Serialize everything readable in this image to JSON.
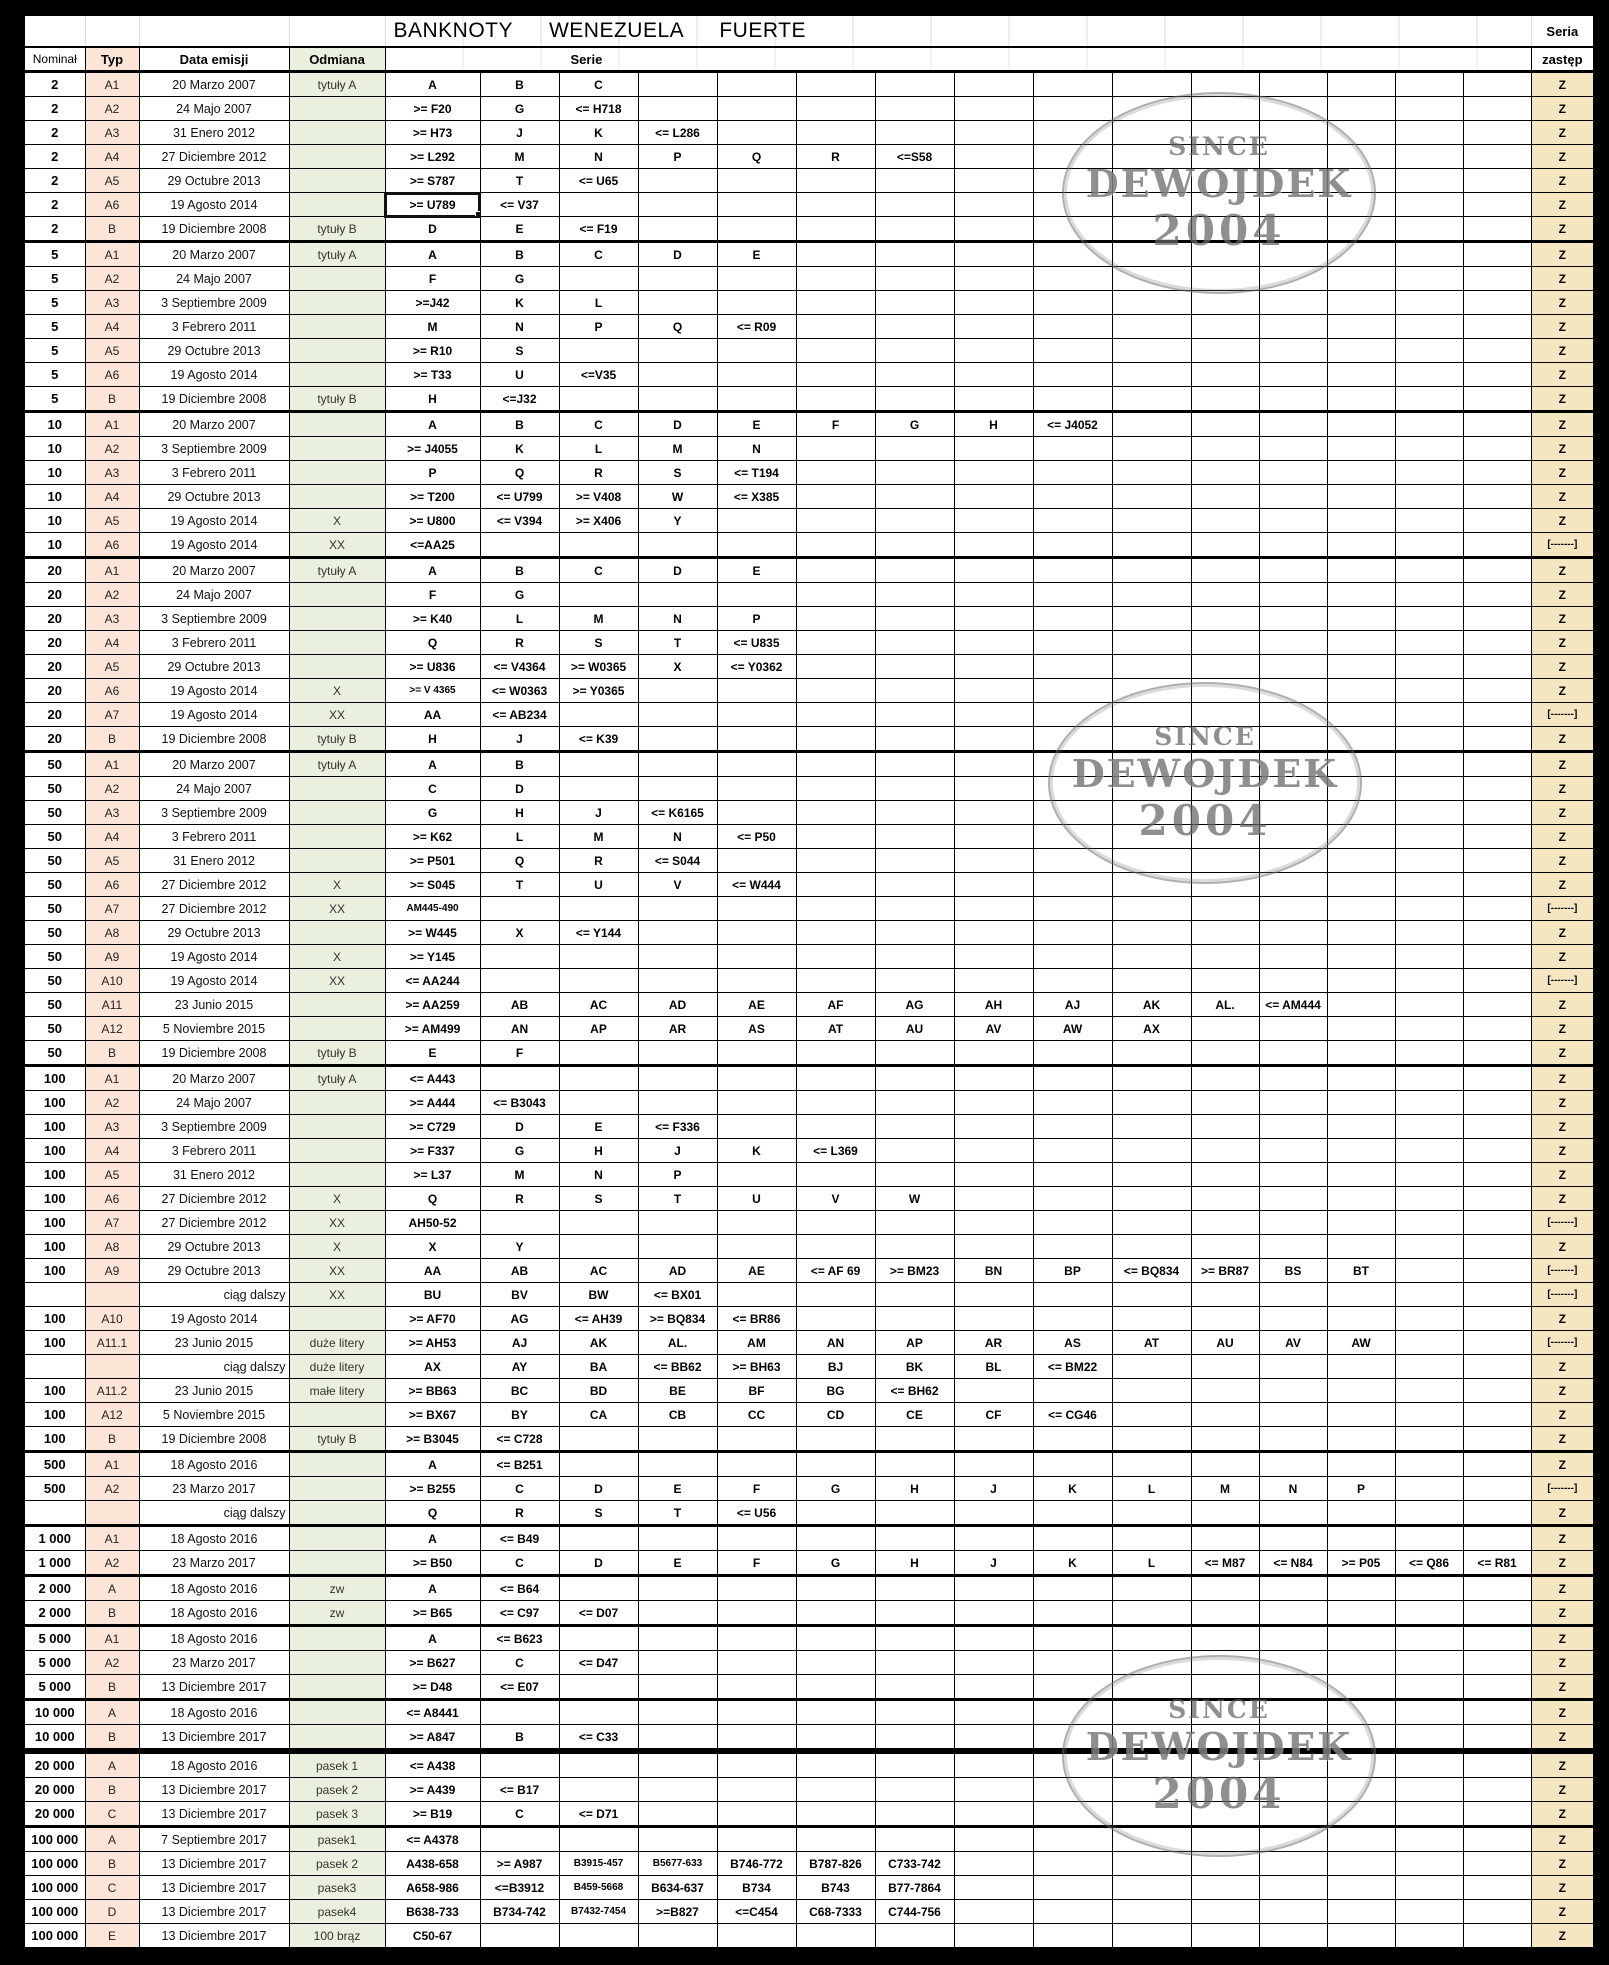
{
  "title": "BANKNOTY WENEZUELA FUERTE",
  "header": {
    "nominal": "Nominał",
    "typ": "Typ",
    "data_emisji": "Data emisji",
    "odmiana": "Odmiana",
    "serie": "Serie",
    "seria_top": "Seria",
    "seria_bottom": "zastęp"
  },
  "watermark": {
    "since": "SINCE",
    "name": "DEWOJDEK",
    "year": "2004"
  },
  "colors": {
    "typ_bg": "#FCE4D6",
    "odmiana_bg": "#E9F0DD",
    "zastep_bg": "#F3E6C0",
    "grid": "#000000",
    "page_bg": "#000000",
    "watermark_gray": "#6E6E6E"
  },
  "zastep_values": {
    "normal": "Z",
    "replacement_dash": "[-------]"
  },
  "rows": [
    {
      "n": "2",
      "t": "A1",
      "d": "20 Marzo 2007",
      "o": "tytuły A",
      "s": [
        "A",
        "B",
        "C"
      ],
      "z": "Z",
      "g": 1
    },
    {
      "n": "2",
      "t": "A2",
      "d": "24 Majo 2007",
      "o": "",
      "s": [
        ">= F20",
        "G",
        "<= H718"
      ],
      "z": "Z",
      "g": 0
    },
    {
      "n": "2",
      "t": "A3",
      "d": "31 Enero 2012",
      "o": "",
      "s": [
        ">= H73",
        "J",
        "K",
        "<= L286"
      ],
      "z": "Z",
      "g": 0
    },
    {
      "n": "2",
      "t": "A4",
      "d": "27 Diciembre 2012",
      "o": "",
      "s": [
        ">= L292",
        "M",
        "N",
        "P",
        "Q",
        "R",
        "<=S58"
      ],
      "z": "Z",
      "g": 0
    },
    {
      "n": "2",
      "t": "A5",
      "d": "29 Octubre 2013",
      "o": "",
      "s": [
        ">= S787",
        "T",
        "<= U65"
      ],
      "z": "Z",
      "g": 0
    },
    {
      "n": "2",
      "t": "A6",
      "d": "19 Agosto 2014",
      "o": "",
      "s": [
        ">= U789",
        "<= V37"
      ],
      "z": "Z",
      "g": 0,
      "sel": 0
    },
    {
      "n": "2",
      "t": "B",
      "d": "19 Diciembre 2008",
      "o": "tytuły B",
      "s": [
        "D",
        "E",
        "<= F19"
      ],
      "z": "Z",
      "g": 0
    },
    {
      "n": "5",
      "t": "A1",
      "d": "20 Marzo 2007",
      "o": "tytuły A",
      "s": [
        "A",
        "B",
        "C",
        "D",
        "E"
      ],
      "z": "Z",
      "g": 1
    },
    {
      "n": "5",
      "t": "A2",
      "d": "24 Majo 2007",
      "o": "",
      "s": [
        "F",
        "G"
      ],
      "z": "Z",
      "g": 0
    },
    {
      "n": "5",
      "t": "A3",
      "d": "3 Septiembre 2009",
      "o": "",
      "s": [
        ">=J42",
        "K",
        "L"
      ],
      "z": "Z",
      "g": 0
    },
    {
      "n": "5",
      "t": "A4",
      "d": "3 Febrero 2011",
      "o": "",
      "s": [
        "M",
        "N",
        "P",
        "Q",
        "<= R09"
      ],
      "z": "Z",
      "g": 0
    },
    {
      "n": "5",
      "t": "A5",
      "d": "29 Octubre 2013",
      "o": "",
      "s": [
        ">= R10",
        "S"
      ],
      "z": "Z",
      "g": 0
    },
    {
      "n": "5",
      "t": "A6",
      "d": "19 Agosto 2014",
      "o": "",
      "s": [
        ">= T33",
        "U",
        "<=V35"
      ],
      "z": "Z",
      "g": 0
    },
    {
      "n": "5",
      "t": "B",
      "d": "19 Diciembre 2008",
      "o": "tytuły B",
      "s": [
        "H",
        "<=J32"
      ],
      "z": "Z",
      "g": 0
    },
    {
      "n": "10",
      "t": "A1",
      "d": "20 Marzo 2007",
      "o": "",
      "s": [
        "A",
        "B",
        "C",
        "D",
        "E",
        "F",
        "G",
        "H",
        "<= J4052"
      ],
      "z": "Z",
      "g": 1
    },
    {
      "n": "10",
      "t": "A2",
      "d": "3 Septiembre 2009",
      "o": "",
      "s": [
        ">= J4055",
        "K",
        "L",
        "M",
        "N"
      ],
      "z": "Z",
      "g": 0
    },
    {
      "n": "10",
      "t": "A3",
      "d": "3 Febrero 2011",
      "o": "",
      "s": [
        "P",
        "Q",
        "R",
        "S",
        "<= T194"
      ],
      "z": "Z",
      "g": 0
    },
    {
      "n": "10",
      "t": "A4",
      "d": "29 Octubre 2013",
      "o": "",
      "s": [
        ">= T200",
        "<= U799",
        ">= V408",
        "W",
        "<= X385"
      ],
      "z": "Z",
      "g": 0
    },
    {
      "n": "10",
      "t": "A5",
      "d": "19 Agosto 2014",
      "o": "X",
      "s": [
        ">= U800",
        "<= V394",
        ">= X406",
        "Y"
      ],
      "z": "Z",
      "g": 0
    },
    {
      "n": "10",
      "t": "A6",
      "d": "19 Agosto 2014",
      "o": "XX",
      "s": [
        "<=AA25"
      ],
      "z": "[-------]",
      "g": 0
    },
    {
      "n": "20",
      "t": "A1",
      "d": "20 Marzo 2007",
      "o": "tytuły A",
      "s": [
        "A",
        "B",
        "C",
        "D",
        "E"
      ],
      "z": "Z",
      "g": 1
    },
    {
      "n": "20",
      "t": "A2",
      "d": "24 Majo 2007",
      "o": "",
      "s": [
        "F",
        "G"
      ],
      "z": "Z",
      "g": 0
    },
    {
      "n": "20",
      "t": "A3",
      "d": "3 Septiembre 2009",
      "o": "",
      "s": [
        ">= K40",
        "L",
        "M",
        "N",
        "P"
      ],
      "z": "Z",
      "g": 0
    },
    {
      "n": "20",
      "t": "A4",
      "d": "3 Febrero 2011",
      "o": "",
      "s": [
        "Q",
        "R",
        "S",
        "T",
        "<= U835"
      ],
      "z": "Z",
      "g": 0
    },
    {
      "n": "20",
      "t": "A5",
      "d": "29 Octubre 2013",
      "o": "",
      "s": [
        ">= U836",
        "<= V4364",
        ">= W0365",
        "X",
        "<= Y0362"
      ],
      "z": "Z",
      "g": 0
    },
    {
      "n": "20",
      "t": "A6",
      "d": "19 Agosto 2014",
      "o": "X",
      "s": [
        ">= V 4365",
        "<= W0363",
        ">= Y0365"
      ],
      "z": "Z",
      "g": 0
    },
    {
      "n": "20",
      "t": "A7",
      "d": "19 Agosto 2014",
      "o": "XX",
      "s": [
        "AA",
        "<= AB234"
      ],
      "z": "[-------]",
      "g": 0
    },
    {
      "n": "20",
      "t": "B",
      "d": "19 Diciembre 2008",
      "o": "tytuły B",
      "s": [
        "H",
        "J",
        "<= K39"
      ],
      "z": "Z",
      "g": 0
    },
    {
      "n": "50",
      "t": "A1",
      "d": "20 Marzo 2007",
      "o": "tytuły A",
      "s": [
        "A",
        "B"
      ],
      "z": "Z",
      "g": 1
    },
    {
      "n": "50",
      "t": "A2",
      "d": "24 Majo 2007",
      "o": "",
      "s": [
        "C",
        "D"
      ],
      "z": "Z",
      "g": 0
    },
    {
      "n": "50",
      "t": "A3",
      "d": "3 Septiembre 2009",
      "o": "",
      "s": [
        "G",
        "H",
        "J",
        "<= K6165"
      ],
      "z": "Z",
      "g": 0
    },
    {
      "n": "50",
      "t": "A4",
      "d": "3 Febrero 2011",
      "o": "",
      "s": [
        ">= K62",
        "L",
        "M",
        "N",
        "<= P50"
      ],
      "z": "Z",
      "g": 0
    },
    {
      "n": "50",
      "t": "A5",
      "d": "31 Enero 2012",
      "o": "",
      "s": [
        ">= P501",
        "Q",
        "R",
        "<= S044"
      ],
      "z": "Z",
      "g": 0
    },
    {
      "n": "50",
      "t": "A6",
      "d": "27 Diciembre 2012",
      "o": "X",
      "s": [
        ">= S045",
        "T",
        "U",
        "V",
        "<= W444"
      ],
      "z": "Z",
      "g": 0
    },
    {
      "n": "50",
      "t": "A7",
      "d": "27 Diciembre 2012",
      "o": "XX",
      "s": [
        "AM445-490"
      ],
      "z": "[-------]",
      "g": 0
    },
    {
      "n": "50",
      "t": "A8",
      "d": "29 Octubre 2013",
      "o": "",
      "s": [
        ">= W445",
        "X",
        "<= Y144"
      ],
      "z": "Z",
      "g": 0
    },
    {
      "n": "50",
      "t": "A9",
      "d": "19 Agosto 2014",
      "o": "X",
      "s": [
        ">= Y145"
      ],
      "z": "Z",
      "g": 0
    },
    {
      "n": "50",
      "t": "A10",
      "d": "19 Agosto 2014",
      "o": "XX",
      "s": [
        "<= AA244"
      ],
      "z": "[-------]",
      "g": 0
    },
    {
      "n": "50",
      "t": "A11",
      "d": "23 Junio 2015",
      "o": "",
      "s": [
        ">= AA259",
        "AB",
        "AC",
        "AD",
        "AE",
        "AF",
        "AG",
        "AH",
        "AJ",
        "AK",
        "AL.",
        "<= AM444"
      ],
      "z": "Z",
      "g": 0
    },
    {
      "n": "50",
      "t": "A12",
      "d": "5 Noviembre 2015",
      "o": "",
      "s": [
        ">= AM499",
        "AN",
        "AP",
        "AR",
        "AS",
        "AT",
        "AU",
        "AV",
        "AW",
        "AX"
      ],
      "z": "Z",
      "g": 0
    },
    {
      "n": "50",
      "t": "B",
      "d": "19 Diciembre 2008",
      "o": "tytuły B",
      "s": [
        "E",
        "F"
      ],
      "z": "Z",
      "g": 0
    },
    {
      "n": "100",
      "t": "A1",
      "d": "20 Marzo 2007",
      "o": "tytuły A",
      "s": [
        "<= A443"
      ],
      "z": "Z",
      "g": 1
    },
    {
      "n": "100",
      "t": "A2",
      "d": "24 Majo 2007",
      "o": "",
      "s": [
        ">= A444",
        "<= B3043"
      ],
      "z": "Z",
      "g": 0
    },
    {
      "n": "100",
      "t": "A3",
      "d": "3 Septiembre 2009",
      "o": "",
      "s": [
        ">= C729",
        "D",
        "E",
        "<= F336"
      ],
      "z": "Z",
      "g": 0
    },
    {
      "n": "100",
      "t": "A4",
      "d": "3 Febrero 2011",
      "o": "",
      "s": [
        ">= F337",
        "G",
        "H",
        "J",
        "K",
        "<= L369"
      ],
      "z": "Z",
      "g": 0
    },
    {
      "n": "100",
      "t": "A5",
      "d": "31 Enero 2012",
      "o": "",
      "s": [
        ">= L37",
        "M",
        "N",
        "P"
      ],
      "z": "Z",
      "g": 0
    },
    {
      "n": "100",
      "t": "A6",
      "d": "27 Diciembre 2012",
      "o": "X",
      "s": [
        "Q",
        "R",
        "S",
        "T",
        "U",
        "V",
        "W"
      ],
      "z": "Z",
      "g": 0
    },
    {
      "n": "100",
      "t": "A7",
      "d": "27 Diciembre 2012",
      "o": "XX",
      "s": [
        "AH50-52"
      ],
      "z": "[-------]",
      "g": 0
    },
    {
      "n": "100",
      "t": "A8",
      "d": "29 Octubre 2013",
      "o": "X",
      "s": [
        "X",
        "Y"
      ],
      "z": "Z",
      "g": 0
    },
    {
      "n": "100",
      "t": "A9",
      "d": "29 Octubre 2013",
      "o": "XX",
      "s": [
        "AA",
        "AB",
        "AC",
        "AD",
        "AE",
        "<= AF 69",
        ">= BM23",
        "BN",
        "BP",
        "<= BQ834",
        ">= BR87",
        "BS",
        "BT"
      ],
      "z": "[-------]",
      "g": 0
    },
    {
      "n": "",
      "t": "",
      "d": "ciąg dalszy",
      "o": "XX",
      "s": [
        "BU",
        "BV",
        "BW",
        "<= BX01"
      ],
      "z": "[-------]",
      "g": 0
    },
    {
      "n": "100",
      "t": "A10",
      "d": "19 Agosto 2014",
      "o": "",
      "s": [
        ">= AF70",
        "AG",
        "<= AH39",
        ">= BQ834",
        "<= BR86"
      ],
      "z": "Z",
      "g": 0
    },
    {
      "n": "100",
      "t": "A11.1",
      "d": "23 Junio 2015",
      "o": "duże litery",
      "s": [
        ">= AH53",
        "AJ",
        "AK",
        "AL.",
        "AM",
        "AN",
        "AP",
        "AR",
        "AS",
        "AT",
        "AU",
        "AV",
        "AW"
      ],
      "z": "[-------]",
      "g": 0
    },
    {
      "n": "",
      "t": "",
      "d": "ciąg dalszy",
      "o": "duże litery",
      "s": [
        "AX",
        "AY",
        "BA",
        "<= BB62",
        ">= BH63",
        "BJ",
        "BK",
        "BL",
        "<= BM22"
      ],
      "z": "Z",
      "g": 0
    },
    {
      "n": "100",
      "t": "A11.2",
      "d": "23 Junio 2015",
      "o": "małe litery",
      "s": [
        ">= BB63",
        "BC",
        "BD",
        "BE",
        "BF",
        "BG",
        "<= BH62"
      ],
      "z": "Z",
      "g": 0
    },
    {
      "n": "100",
      "t": "A12",
      "d": "5 Noviembre 2015",
      "o": "",
      "s": [
        ">= BX67",
        "BY",
        "CA",
        "CB",
        "CC",
        "CD",
        "CE",
        "CF",
        "<= CG46"
      ],
      "z": "Z",
      "g": 0
    },
    {
      "n": "100",
      "t": "B",
      "d": "19 Diciembre 2008",
      "o": "tytuły B",
      "s": [
        ">= B3045",
        "<= C728"
      ],
      "z": "Z",
      "g": 0
    },
    {
      "n": "500",
      "t": "A1",
      "d": "18 Agosto 2016",
      "o": "",
      "s": [
        "A",
        "<= B251"
      ],
      "z": "Z",
      "g": 1
    },
    {
      "n": "500",
      "t": "A2",
      "d": "23 Marzo 2017",
      "o": "",
      "s": [
        ">= B255",
        "C",
        "D",
        "E",
        "F",
        "G",
        "H",
        "J",
        "K",
        "L",
        "M",
        "N",
        "P"
      ],
      "z": "[-------]",
      "g": 0
    },
    {
      "n": "",
      "t": "",
      "d": "ciąg dalszy",
      "o": "",
      "s": [
        "Q",
        "R",
        "S",
        "T",
        "<= U56"
      ],
      "z": "Z",
      "g": 0
    },
    {
      "n": "1 000",
      "t": "A1",
      "d": "18 Agosto 2016",
      "o": "",
      "s": [
        "A",
        "<= B49"
      ],
      "z": "Z",
      "g": 1
    },
    {
      "n": "1 000",
      "t": "A2",
      "d": "23 Marzo 2017",
      "o": "",
      "s": [
        ">= B50",
        "C",
        "D",
        "E",
        "F",
        "G",
        "H",
        "J",
        "K",
        "L",
        "<= M87",
        "<= N84",
        ">= P05",
        "<= Q86",
        "<= R81"
      ],
      "z": "Z",
      "g": 0
    },
    {
      "n": "2 000",
      "t": "A",
      "d": "18 Agosto 2016",
      "o": "zw",
      "s": [
        "A",
        "<= B64"
      ],
      "z": "Z",
      "g": 1
    },
    {
      "n": "2 000",
      "t": "B",
      "d": "18 Agosto 2016",
      "o": "zw",
      "s": [
        ">= B65",
        "<= C97",
        "<= D07"
      ],
      "z": "Z",
      "g": 0
    },
    {
      "n": "5 000",
      "t": "A1",
      "d": "18 Agosto 2016",
      "o": "",
      "s": [
        "A",
        "<= B623"
      ],
      "z": "Z",
      "g": 1
    },
    {
      "n": "5 000",
      "t": "A2",
      "d": "23 Marzo 2017",
      "o": "",
      "s": [
        ">= B627",
        "C",
        "<= D47"
      ],
      "z": "Z",
      "g": 0
    },
    {
      "n": "5 000",
      "t": "B",
      "d": "13 Diciembre 2017",
      "o": "",
      "s": [
        ">= D48",
        "<= E07"
      ],
      "z": "Z",
      "g": 0
    },
    {
      "n": "10 000",
      "t": "A",
      "d": "18 Agosto 2016",
      "o": "",
      "s": [
        "<= A8441"
      ],
      "z": "Z",
      "g": 1
    },
    {
      "n": "10 000",
      "t": "B",
      "d": "13 Diciembre 2017",
      "o": "",
      "s": [
        ">= A847",
        "B",
        "<= C33"
      ],
      "z": "Z",
      "g": 0
    },
    {
      "n": "20 000",
      "t": "A",
      "d": "18 Agosto 2016",
      "o": "pasek 1",
      "s": [
        "<= A438"
      ],
      "z": "Z",
      "g": 2
    },
    {
      "n": "20 000",
      "t": "B",
      "d": "13 Diciembre 2017",
      "o": "pasek 2",
      "s": [
        ">= A439",
        "<= B17"
      ],
      "z": "Z",
      "g": 0
    },
    {
      "n": "20 000",
      "t": "C",
      "d": "13 Diciembre 2017",
      "o": "pasek 3",
      "s": [
        ">= B19",
        "C",
        "<= D71"
      ],
      "z": "Z",
      "g": 0
    },
    {
      "n": "100 000",
      "t": "A",
      "d": "7 Septiembre 2017",
      "o": "pasek1",
      "s": [
        "<= A4378"
      ],
      "z": "Z",
      "g": 1
    },
    {
      "n": "100 000",
      "t": "B",
      "d": "13 Diciembre 2017",
      "o": "pasek 2",
      "s": [
        "A438-658",
        ">= A987",
        "B3915-457",
        "B5677-633",
        "B746-772",
        "B787-826",
        "C733-742"
      ],
      "z": "Z",
      "g": 0
    },
    {
      "n": "100 000",
      "t": "C",
      "d": "13 Diciembre 2017",
      "o": "pasek3",
      "s": [
        "A658-986",
        "<=B3912",
        "B459-5668",
        "B634-637",
        "B734",
        "B743",
        "B77-7864"
      ],
      "z": "Z",
      "g": 0
    },
    {
      "n": "100 000",
      "t": "D",
      "d": "13 Diciembre 2017",
      "o": "pasek4",
      "s": [
        "B638-733",
        "B734-742",
        "B7432-7454",
        ">=B827",
        "<=C454",
        "C68-7333",
        "C744-756"
      ],
      "z": "Z",
      "g": 0
    },
    {
      "n": "100 000",
      "t": "E",
      "d": "13 Diciembre 2017",
      "o": "100 brąz",
      "s": [
        "C50-67"
      ],
      "z": "Z",
      "g": 0
    }
  ]
}
